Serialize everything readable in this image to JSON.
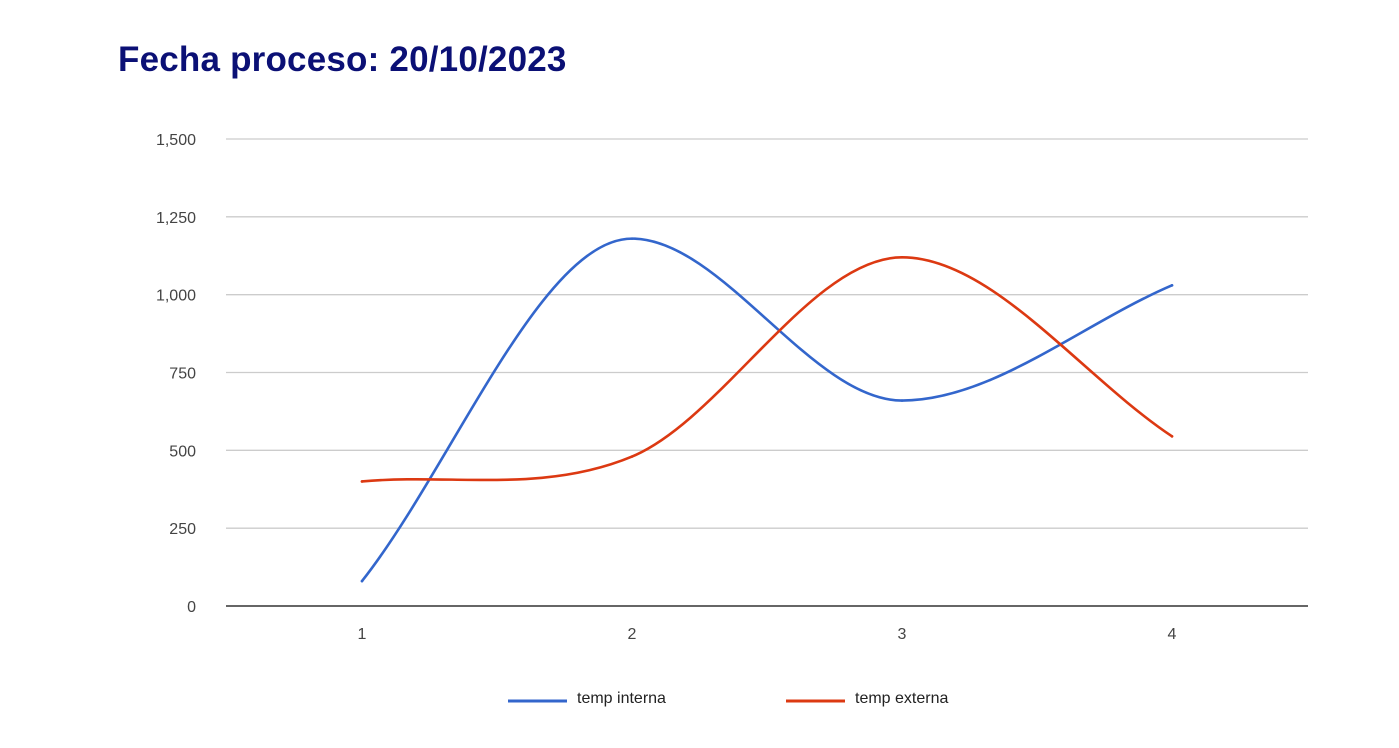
{
  "chart_data": {
    "type": "line",
    "title": "Fecha proceso: 20/10/2023",
    "x": [
      "1",
      "2",
      "3",
      "4"
    ],
    "xlabel": "",
    "ylabel": "",
    "ylim": [
      0,
      1500
    ],
    "yticks": [
      0,
      250,
      500,
      750,
      1000,
      1250,
      1500
    ],
    "ytick_labels": [
      "0",
      "250",
      "500",
      "750",
      "1,000",
      "1,250",
      "1,500"
    ],
    "grid": true,
    "smooth": true,
    "legend_position": "bottom",
    "series": [
      {
        "name": "temp interna",
        "values": [
          80,
          1180,
          660,
          1030
        ],
        "color": "#3366cc"
      },
      {
        "name": "temp externa",
        "values": [
          400,
          480,
          1120,
          545
        ],
        "color": "#dc3912"
      }
    ]
  }
}
